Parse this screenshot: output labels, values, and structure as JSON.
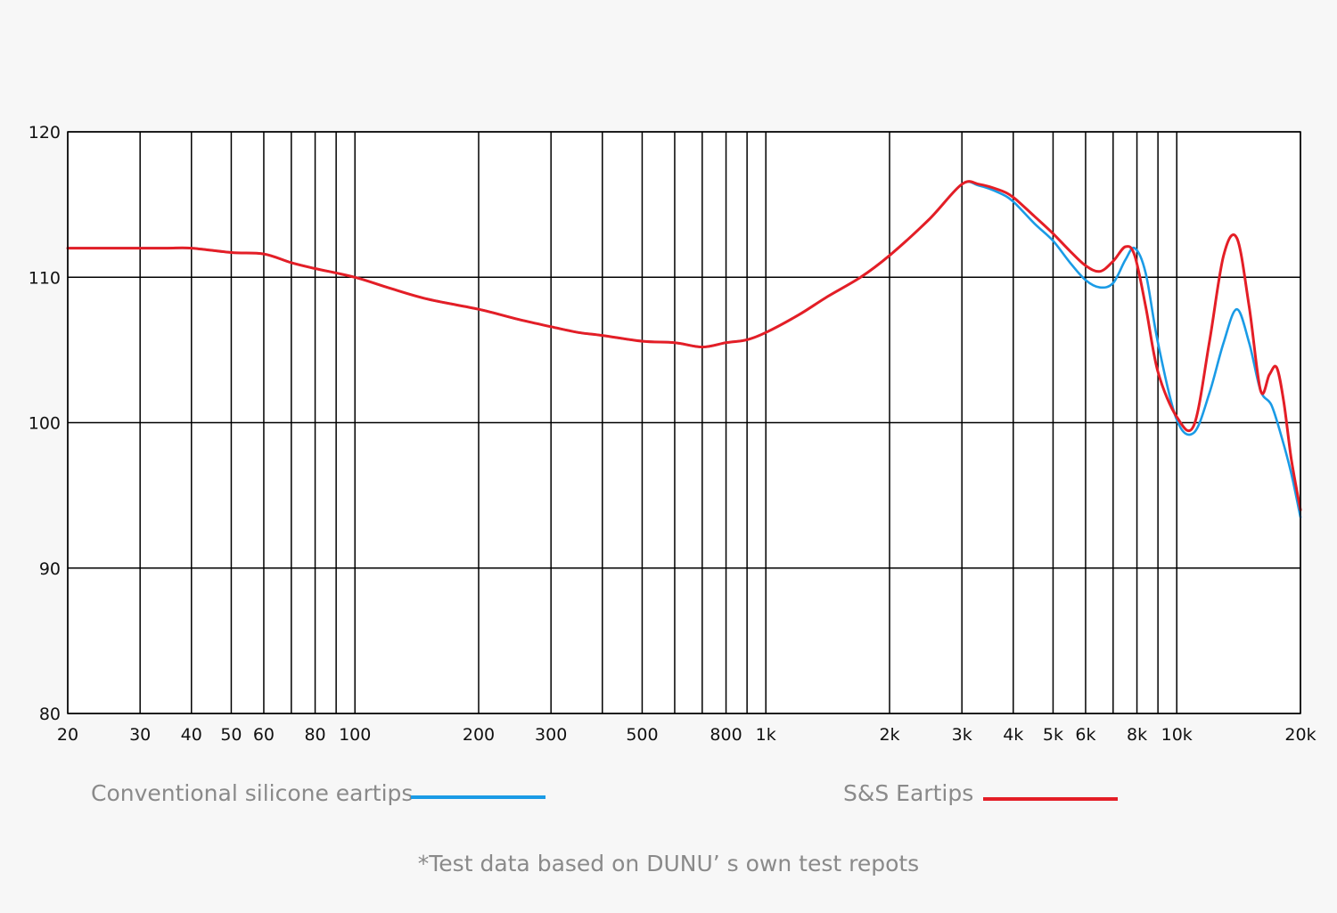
{
  "chart_data": {
    "type": "line",
    "x_scale": "log",
    "xlim": [
      20,
      20000
    ],
    "ylim": [
      80,
      120
    ],
    "grid": true,
    "x_ticks": [
      {
        "value": 20,
        "label": "20"
      },
      {
        "value": 30,
        "label": "30"
      },
      {
        "value": 40,
        "label": "40"
      },
      {
        "value": 50,
        "label": "50"
      },
      {
        "value": 60,
        "label": "60"
      },
      {
        "value": 80,
        "label": "80"
      },
      {
        "value": 100,
        "label": "100"
      },
      {
        "value": 200,
        "label": "200"
      },
      {
        "value": 300,
        "label": "300"
      },
      {
        "value": 500,
        "label": "500"
      },
      {
        "value": 800,
        "label": "800"
      },
      {
        "value": 1000,
        "label": "1k"
      },
      {
        "value": 2000,
        "label": "2k"
      },
      {
        "value": 3000,
        "label": "3k"
      },
      {
        "value": 4000,
        "label": "4k"
      },
      {
        "value": 5000,
        "label": "5k"
      },
      {
        "value": 6000,
        "label": "6k"
      },
      {
        "value": 8000,
        "label": "8k"
      },
      {
        "value": 10000,
        "label": "10k"
      },
      {
        "value": 20000,
        "label": "20k"
      }
    ],
    "x_gridlines": [
      20,
      30,
      40,
      50,
      60,
      70,
      80,
      90,
      100,
      200,
      300,
      400,
      500,
      600,
      700,
      800,
      900,
      1000,
      2000,
      3000,
      4000,
      5000,
      6000,
      7000,
      8000,
      9000,
      10000,
      20000
    ],
    "y_ticks": [
      {
        "value": 80,
        "label": "80"
      },
      {
        "value": 90,
        "label": "90"
      },
      {
        "value": 100,
        "label": "100"
      },
      {
        "value": 110,
        "label": "110"
      },
      {
        "value": 120,
        "label": "120"
      }
    ],
    "legend": "bottom",
    "series": [
      {
        "name": "Conventional silicone eartips",
        "color": "#1a9be6",
        "points": [
          [
            20,
            112.0
          ],
          [
            25,
            112.0
          ],
          [
            30,
            112.0
          ],
          [
            35,
            112.0
          ],
          [
            40,
            112.0
          ],
          [
            50,
            111.7
          ],
          [
            60,
            111.6
          ],
          [
            70,
            111.0
          ],
          [
            80,
            110.6
          ],
          [
            100,
            110.0
          ],
          [
            120,
            109.3
          ],
          [
            150,
            108.5
          ],
          [
            200,
            107.8
          ],
          [
            250,
            107.1
          ],
          [
            300,
            106.6
          ],
          [
            350,
            106.2
          ],
          [
            400,
            106.0
          ],
          [
            500,
            105.6
          ],
          [
            600,
            105.5
          ],
          [
            700,
            105.2
          ],
          [
            800,
            105.5
          ],
          [
            900,
            105.7
          ],
          [
            1000,
            106.2
          ],
          [
            1200,
            107.4
          ],
          [
            1400,
            108.6
          ],
          [
            1700,
            110.0
          ],
          [
            2000,
            111.5
          ],
          [
            2500,
            114.0
          ],
          [
            3000,
            116.4
          ],
          [
            3300,
            116.3
          ],
          [
            3700,
            115.8
          ],
          [
            4000,
            115.2
          ],
          [
            4500,
            113.7
          ],
          [
            5000,
            112.5
          ],
          [
            5500,
            111.0
          ],
          [
            6000,
            109.8
          ],
          [
            6500,
            109.3
          ],
          [
            7000,
            109.6
          ],
          [
            7500,
            111.2
          ],
          [
            7900,
            112.0
          ],
          [
            8400,
            110.3
          ],
          [
            9000,
            105.5
          ],
          [
            10000,
            100.2
          ],
          [
            11000,
            99.3
          ],
          [
            12000,
            102.0
          ],
          [
            13000,
            105.5
          ],
          [
            14000,
            107.8
          ],
          [
            15000,
            105.5
          ],
          [
            16000,
            102.2
          ],
          [
            17000,
            101.2
          ],
          [
            18000,
            99.0
          ],
          [
            19000,
            96.5
          ],
          [
            20000,
            93.5
          ]
        ]
      },
      {
        "name": "S&S Eartips",
        "color": "#e41e26",
        "points": [
          [
            20,
            112.0
          ],
          [
            25,
            112.0
          ],
          [
            30,
            112.0
          ],
          [
            35,
            112.0
          ],
          [
            40,
            112.0
          ],
          [
            50,
            111.7
          ],
          [
            60,
            111.6
          ],
          [
            70,
            111.0
          ],
          [
            80,
            110.6
          ],
          [
            100,
            110.0
          ],
          [
            120,
            109.3
          ],
          [
            150,
            108.5
          ],
          [
            200,
            107.8
          ],
          [
            250,
            107.1
          ],
          [
            300,
            106.6
          ],
          [
            350,
            106.2
          ],
          [
            400,
            106.0
          ],
          [
            500,
            105.6
          ],
          [
            600,
            105.5
          ],
          [
            700,
            105.2
          ],
          [
            800,
            105.5
          ],
          [
            900,
            105.7
          ],
          [
            1000,
            106.2
          ],
          [
            1200,
            107.4
          ],
          [
            1400,
            108.6
          ],
          [
            1700,
            110.0
          ],
          [
            2000,
            111.5
          ],
          [
            2500,
            114.0
          ],
          [
            3000,
            116.4
          ],
          [
            3300,
            116.4
          ],
          [
            3700,
            116.0
          ],
          [
            4000,
            115.5
          ],
          [
            4500,
            114.2
          ],
          [
            5000,
            113.0
          ],
          [
            5500,
            111.8
          ],
          [
            6000,
            110.8
          ],
          [
            6500,
            110.4
          ],
          [
            7000,
            111.1
          ],
          [
            7500,
            112.1
          ],
          [
            7900,
            111.5
          ],
          [
            8400,
            108.0
          ],
          [
            9000,
            103.5
          ],
          [
            10000,
            100.4
          ],
          [
            11000,
            99.8
          ],
          [
            12000,
            105.5
          ],
          [
            13000,
            111.5
          ],
          [
            14000,
            112.7
          ],
          [
            15000,
            108.0
          ],
          [
            16000,
            102.2
          ],
          [
            16800,
            103.3
          ],
          [
            17500,
            103.8
          ],
          [
            18200,
            101.5
          ],
          [
            19000,
            97.5
          ],
          [
            20000,
            94.0
          ]
        ]
      }
    ]
  },
  "legend": {
    "conventional_label": "Conventional silicone eartips",
    "ss_label": "S&S Eartips"
  },
  "footnote": "*Test data based on DUNU’ s own test repots"
}
